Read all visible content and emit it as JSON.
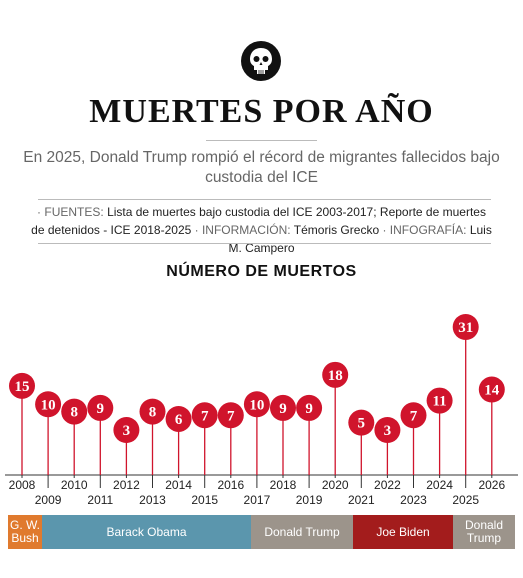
{
  "header": {
    "skull_icon": "skull-icon",
    "title": "MUERTES POR AÑO",
    "subtitle": "En 2025, Donald Trump rompió el récord de migrantes fallecidos bajo custodia del ICE"
  },
  "credits": {
    "fuentes_label": "· FUENTES:",
    "fuentes_text": "Lista de muertes bajo custodia del ICE 2003-2017; Reporte de muertes de detenidos - ICE 2018-2025",
    "info_label": "· INFORMACIÓN:",
    "info_text": "Témoris Grecko",
    "infografia_label": "· INFOGRAFÍA:",
    "infografia_text": "Luis M. Campero"
  },
  "chart_data": {
    "type": "lollipop",
    "title": "NÚMERO DE MUERTOS",
    "categories": [
      "2008",
      "2009",
      "2010",
      "2011",
      "2012",
      "2013",
      "2014",
      "2015",
      "2016",
      "2017",
      "2018",
      "2019",
      "2020",
      "2021",
      "2022",
      "2023",
      "2024",
      "2025",
      "2026"
    ],
    "values": [
      15,
      10,
      8,
      9,
      3,
      8,
      6,
      7,
      7,
      10,
      9,
      9,
      18,
      5,
      3,
      7,
      11,
      31,
      14
    ],
    "colors": {
      "marker": "#d0142c",
      "stem": "#d0142c",
      "axis": "#333333"
    },
    "administrations": [
      {
        "name": "G. W. Bush",
        "line1": "G. W.",
        "line2": "Bush",
        "color": "#e07a2e",
        "from_year": 2008,
        "to_year": 2008
      },
      {
        "name": "Barack Obama",
        "line1": "Barack Obama",
        "line2": "",
        "color": "#5b96ad",
        "from_year": 2009,
        "to_year": 2016
      },
      {
        "name": "Donald Trump",
        "line1": "Donald Trump",
        "line2": "",
        "color": "#9c948b",
        "from_year": 2017,
        "to_year": 2020
      },
      {
        "name": "Joe Biden",
        "line1": "Joe Biden",
        "line2": "",
        "color": "#a31c1c",
        "from_year": 2021,
        "to_year": 2024
      },
      {
        "name": "Donald Trump",
        "line1": "Donald",
        "line2": "Trump",
        "color": "#9c948b",
        "from_year": 2025,
        "to_year": 2026
      }
    ]
  }
}
